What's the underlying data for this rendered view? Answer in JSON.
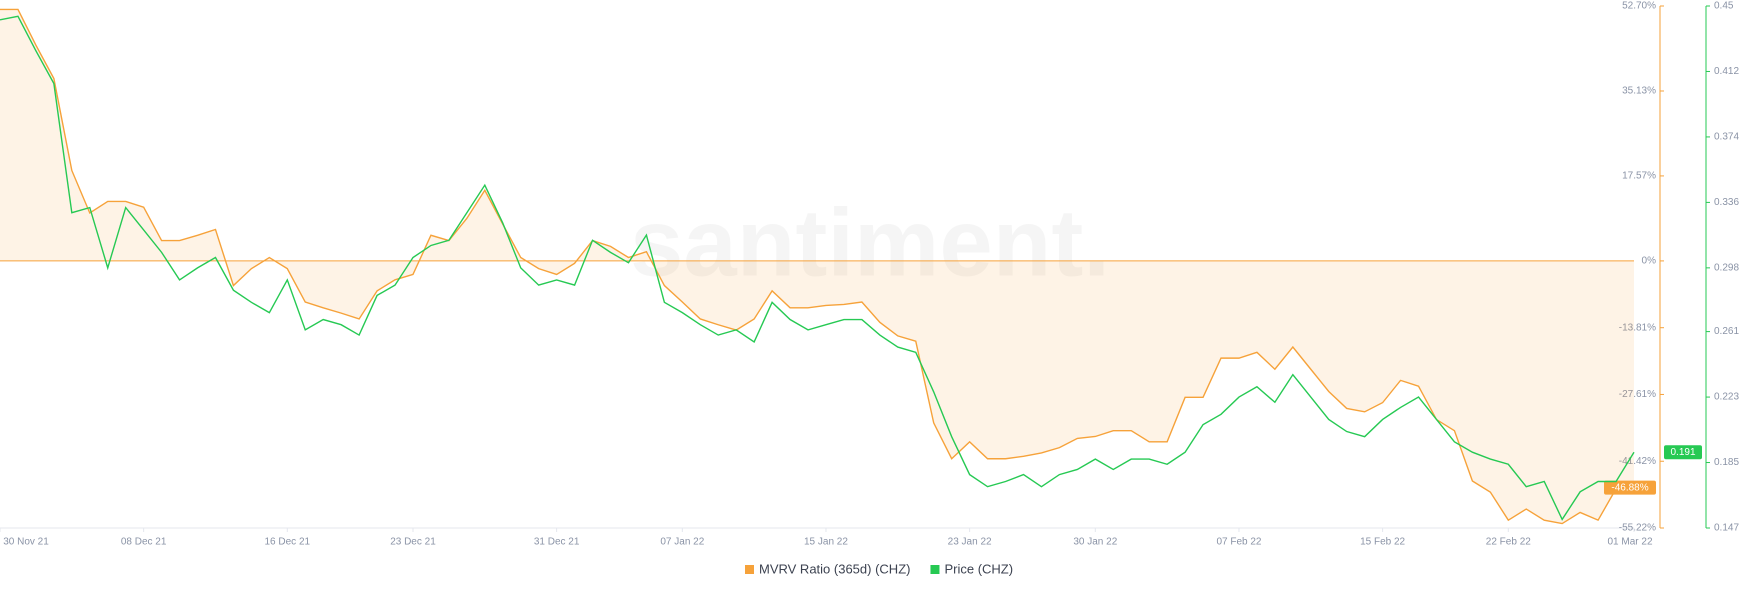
{
  "chart_data": {
    "type": "line",
    "watermark": "santiment.",
    "x": [
      "2021-11-30",
      "2021-12-01",
      "2021-12-02",
      "2021-12-03",
      "2021-12-04",
      "2021-12-05",
      "2021-12-06",
      "2021-12-07",
      "2021-12-08",
      "2021-12-09",
      "2021-12-10",
      "2021-12-11",
      "2021-12-12",
      "2021-12-13",
      "2021-12-14",
      "2021-12-15",
      "2021-12-16",
      "2021-12-17",
      "2021-12-18",
      "2021-12-19",
      "2021-12-20",
      "2021-12-21",
      "2021-12-22",
      "2021-12-23",
      "2021-12-24",
      "2021-12-25",
      "2021-12-26",
      "2021-12-27",
      "2021-12-28",
      "2021-12-29",
      "2021-12-30",
      "2021-12-31",
      "2022-01-01",
      "2022-01-02",
      "2022-01-03",
      "2022-01-04",
      "2022-01-05",
      "2022-01-06",
      "2022-01-07",
      "2022-01-08",
      "2022-01-09",
      "2022-01-10",
      "2022-01-11",
      "2022-01-12",
      "2022-01-13",
      "2022-01-14",
      "2022-01-15",
      "2022-01-16",
      "2022-01-17",
      "2022-01-18",
      "2022-01-19",
      "2022-01-20",
      "2022-01-21",
      "2022-01-22",
      "2022-01-23",
      "2022-01-24",
      "2022-01-25",
      "2022-01-26",
      "2022-01-27",
      "2022-01-28",
      "2022-01-29",
      "2022-01-30",
      "2022-01-31",
      "2022-02-01",
      "2022-02-02",
      "2022-02-03",
      "2022-02-04",
      "2022-02-05",
      "2022-02-06",
      "2022-02-07",
      "2022-02-08",
      "2022-02-09",
      "2022-02-10",
      "2022-02-11",
      "2022-02-12",
      "2022-02-13",
      "2022-02-14",
      "2022-02-15",
      "2022-02-16",
      "2022-02-17",
      "2022-02-18",
      "2022-02-19",
      "2022-02-20",
      "2022-02-21",
      "2022-02-22",
      "2022-02-23",
      "2022-02-24",
      "2022-02-25",
      "2022-02-26",
      "2022-02-27",
      "2022-02-28",
      "2022-03-01"
    ],
    "xticks": [
      {
        "value": "2021-11-30",
        "label": "30 Nov 21"
      },
      {
        "value": "2021-12-08",
        "label": "08 Dec 21"
      },
      {
        "value": "2021-12-16",
        "label": "16 Dec 21"
      },
      {
        "value": "2021-12-23",
        "label": "23 Dec 21"
      },
      {
        "value": "2021-12-31",
        "label": "31 Dec 21"
      },
      {
        "value": "2022-01-07",
        "label": "07 Jan 22"
      },
      {
        "value": "2022-01-15",
        "label": "15 Jan 22"
      },
      {
        "value": "2022-01-23",
        "label": "23 Jan 22"
      },
      {
        "value": "2022-01-30",
        "label": "30 Jan 22"
      },
      {
        "value": "2022-02-07",
        "label": "07 Feb 22"
      },
      {
        "value": "2022-02-15",
        "label": "15 Feb 22"
      },
      {
        "value": "2022-02-22",
        "label": "22 Feb 22"
      },
      {
        "value": "2022-03-01",
        "label": "01 Mar 22"
      }
    ],
    "ylim": [
      -55.22,
      52.7
    ],
    "yticks": [
      {
        "value": 52.7,
        "label": "52.70%"
      },
      {
        "value": 35.13,
        "label": "35.13%"
      },
      {
        "value": 17.57,
        "label": "17.57%"
      },
      {
        "value": 0,
        "label": "0%"
      },
      {
        "value": -13.81,
        "label": "-13.81%"
      },
      {
        "value": -27.61,
        "label": "-27.61%"
      },
      {
        "value": -41.42,
        "label": "-41.42%"
      },
      {
        "value": -55.22,
        "label": "-55.22%"
      }
    ],
    "y2lim": [
      0.147,
      0.45
    ],
    "y2ticks": [
      0.45,
      0.412,
      0.374,
      0.336,
      0.298,
      0.261,
      0.223,
      0.185,
      0.147
    ],
    "series": [
      {
        "name": "MVRV Ratio (365d) (CHZ)",
        "color": "#f6a23a",
        "area": true,
        "values": [
          52.0,
          52.0,
          44.6,
          37.7,
          18.7,
          9.9,
          12.3,
          12.3,
          11.1,
          4.2,
          4.2,
          5.3,
          6.5,
          -5.1,
          -1.6,
          0.7,
          -1.6,
          -8.5,
          -9.7,
          -10.8,
          -12.0,
          -6.2,
          -3.9,
          -2.8,
          5.3,
          4.2,
          8.8,
          14.6,
          7.6,
          0.7,
          -1.6,
          -2.8,
          -0.5,
          4.2,
          3.0,
          0.7,
          1.9,
          -5.1,
          -8.5,
          -12.0,
          -13.2,
          -14.3,
          -12.0,
          -6.2,
          -9.7,
          -9.7,
          -9.2,
          -9.0,
          -8.5,
          -12.7,
          -15.5,
          -16.6,
          -33.5,
          -40.9,
          -37.4,
          -40.9,
          -40.9,
          -40.4,
          -39.7,
          -38.6,
          -36.7,
          -36.3,
          -35.1,
          -35.1,
          -37.4,
          -37.4,
          -28.2,
          -28.2,
          -20.1,
          -20.1,
          -18.9,
          -22.4,
          -17.8,
          -22.4,
          -27.0,
          -30.5,
          -31.2,
          -29.3,
          -24.7,
          -25.9,
          -32.8,
          -35.1,
          -45.5,
          -47.8,
          -53.6,
          -51.3,
          -53.6,
          -54.3,
          -52.0,
          -53.6,
          -47.1,
          -46.88
        ],
        "value_labels": [
          null,
          null,
          null,
          null,
          null,
          null,
          null,
          null,
          null,
          null,
          null,
          null,
          null,
          null,
          null,
          null,
          null,
          null,
          null,
          null,
          null,
          null,
          null,
          null,
          null,
          null,
          null,
          null,
          null,
          null,
          null,
          null,
          null,
          null,
          null,
          null,
          null,
          null,
          null,
          null,
          null,
          null,
          null,
          null,
          null,
          null,
          null,
          null,
          null,
          null,
          null,
          null,
          null,
          null,
          null,
          null,
          null,
          null,
          null,
          null,
          null,
          null,
          null,
          null,
          null,
          null,
          null,
          null,
          null,
          null,
          null,
          null,
          null,
          null,
          null,
          null,
          null,
          null,
          null,
          null,
          null,
          null,
          null,
          null,
          null,
          null,
          null,
          null,
          null,
          null,
          null,
          "-46.88%"
        ]
      },
      {
        "name": "Price (CHZ)",
        "color": "#26c953",
        "axis": "y2",
        "values": [
          0.442,
          0.444,
          0.424,
          0.405,
          0.33,
          0.333,
          0.298,
          0.333,
          0.32,
          0.307,
          0.291,
          0.298,
          0.304,
          0.285,
          0.278,
          0.272,
          0.291,
          0.262,
          0.268,
          0.265,
          0.259,
          0.282,
          0.288,
          0.304,
          0.311,
          0.314,
          0.33,
          0.346,
          0.324,
          0.298,
          0.288,
          0.291,
          0.288,
          0.314,
          0.307,
          0.301,
          0.317,
          0.278,
          0.272,
          0.265,
          0.259,
          0.262,
          0.255,
          0.278,
          0.268,
          0.262,
          0.265,
          0.268,
          0.268,
          0.259,
          0.252,
          0.249,
          0.226,
          0.2,
          0.178,
          0.171,
          0.174,
          0.178,
          0.171,
          0.178,
          0.181,
          0.187,
          0.181,
          0.187,
          0.187,
          0.184,
          0.191,
          0.207,
          0.213,
          0.223,
          0.229,
          0.22,
          0.236,
          0.223,
          0.21,
          0.203,
          0.2,
          0.21,
          0.217,
          0.223,
          0.21,
          0.197,
          0.191,
          0.187,
          0.184,
          0.171,
          0.174,
          0.152,
          0.168,
          0.174,
          0.174,
          0.191
        ],
        "value_labels": [
          null,
          null,
          null,
          null,
          null,
          null,
          null,
          null,
          null,
          null,
          null,
          null,
          null,
          null,
          null,
          null,
          null,
          null,
          null,
          null,
          null,
          null,
          null,
          null,
          null,
          null,
          null,
          null,
          null,
          null,
          null,
          null,
          null,
          null,
          null,
          null,
          null,
          null,
          null,
          null,
          null,
          null,
          null,
          null,
          null,
          null,
          null,
          null,
          null,
          null,
          null,
          null,
          null,
          null,
          null,
          null,
          null,
          null,
          null,
          null,
          null,
          null,
          null,
          null,
          null,
          null,
          null,
          null,
          null,
          null,
          null,
          null,
          null,
          null,
          null,
          null,
          null,
          null,
          null,
          null,
          null,
          null,
          null,
          null,
          null,
          null,
          null,
          null,
          null,
          null,
          null,
          "0.191"
        ]
      }
    ]
  }
}
